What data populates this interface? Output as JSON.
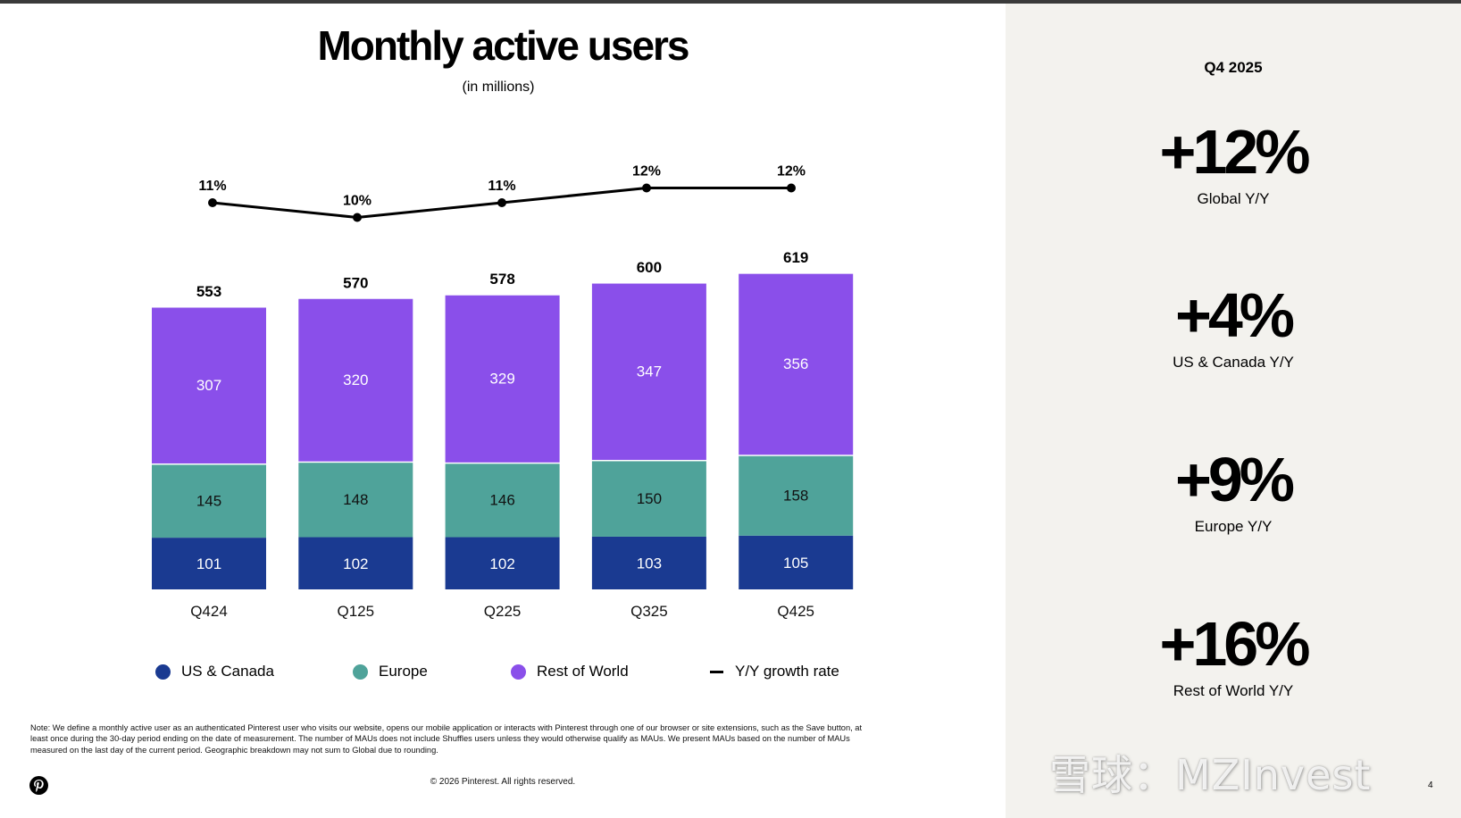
{
  "slide": {
    "title": "Monthly active users",
    "subtitle": "(in millions)",
    "note": "Note: We define a monthly active user as an authenticated Pinterest user who visits our website, opens our mobile application or interacts with Pinterest through one of our browser or site extensions, such as the Save button, at least once during the 30-day period ending on the date of measurement. The number of MAUs does not include Shuffles users unless they would otherwise qualify as MAUs. We present MAUs based on the number of MAUs measured on the last day of the current period. Geographic breakdown may not sum to Global due to rounding.",
    "copyright": "© 2026 Pinterest. All rights reserved.",
    "page_number": "4",
    "logo_icon": "pinterest-logo-icon",
    "watermark": "雪球：MZInvest"
  },
  "summary": {
    "period": "Q4 2025",
    "stats": [
      {
        "value": "+12%",
        "label": "Global Y/Y"
      },
      {
        "value": "+4%",
        "label": "US & Canada Y/Y"
      },
      {
        "value": "+9%",
        "label": "Europe Y/Y"
      },
      {
        "value": "+16%",
        "label": "Rest of World Y/Y"
      }
    ]
  },
  "colors": {
    "us_canada": "#1a3a91",
    "europe": "#4fa39a",
    "rest_of_world": "#8a4fea",
    "line": "#000000",
    "panel": "#f3f2ee"
  },
  "chart_data": {
    "type": "bar",
    "stacked": true,
    "title": "Monthly active users",
    "subtitle": "(in millions)",
    "xlabel": "",
    "ylabel": "",
    "categories": [
      "Q424",
      "Q125",
      "Q225",
      "Q325",
      "Q425"
    ],
    "series": [
      {
        "name": "US & Canada",
        "color": "#1a3a91",
        "values": [
          101,
          102,
          102,
          103,
          105
        ]
      },
      {
        "name": "Europe",
        "color": "#4fa39a",
        "values": [
          145,
          148,
          146,
          150,
          158
        ]
      },
      {
        "name": "Rest of World",
        "color": "#8a4fea",
        "values": [
          307,
          320,
          329,
          347,
          356
        ]
      }
    ],
    "totals": [
      553,
      570,
      578,
      600,
      619
    ],
    "line_series": {
      "name": "Y/Y growth rate",
      "type": "line",
      "values": [
        11,
        10,
        11,
        12,
        12
      ],
      "labels": [
        "11%",
        "10%",
        "11%",
        "12%",
        "12%"
      ]
    },
    "legend": [
      "US & Canada",
      "Europe",
      "Rest of World",
      "Y/Y growth rate"
    ],
    "legend_position": "bottom",
    "grid": false,
    "ylim": [
      0,
      619
    ]
  }
}
